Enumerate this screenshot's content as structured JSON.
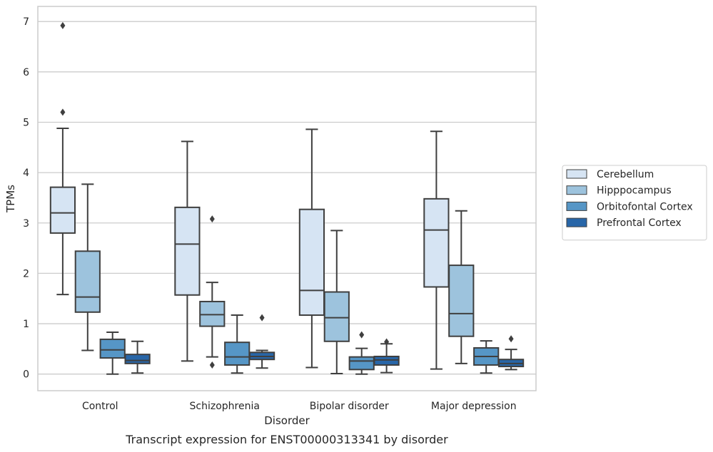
{
  "chart_data": {
    "type": "box",
    "xlabel": "Disorder",
    "ylabel": "TPMs",
    "caption": "Transcript expression for ENST00000313341 by disorder",
    "ylim": [
      -0.33,
      7.3
    ],
    "yticks": [
      "0",
      "1",
      "2",
      "3",
      "4",
      "5",
      "6",
      "7"
    ],
    "grid": "horizontal",
    "legend_position": "right",
    "categories": [
      "Control",
      "Schizophrenia",
      "Bipolar disorder",
      "Major depression"
    ],
    "series": [
      {
        "name": "Cerebellum",
        "color": "#d6e4f3",
        "boxes": [
          {
            "whisker_low": 1.58,
            "q1": 2.8,
            "median": 3.2,
            "q3": 3.71,
            "whisker_high": 4.88,
            "outliers": [
              5.2,
              6.92
            ]
          },
          {
            "whisker_low": 0.26,
            "q1": 1.57,
            "median": 2.58,
            "q3": 3.31,
            "whisker_high": 4.62,
            "outliers": []
          },
          {
            "whisker_low": 0.13,
            "q1": 1.17,
            "median": 1.66,
            "q3": 3.27,
            "whisker_high": 4.86,
            "outliers": []
          },
          {
            "whisker_low": 0.1,
            "q1": 1.73,
            "median": 2.86,
            "q3": 3.48,
            "whisker_high": 4.82,
            "outliers": []
          }
        ]
      },
      {
        "name": "Hipppocampus",
        "color": "#9dc3dd",
        "boxes": [
          {
            "whisker_low": 0.47,
            "q1": 1.23,
            "median": 1.53,
            "q3": 2.44,
            "whisker_high": 3.77,
            "outliers": []
          },
          {
            "whisker_low": 0.34,
            "q1": 0.95,
            "median": 1.18,
            "q3": 1.44,
            "whisker_high": 1.82,
            "outliers": [
              0.18,
              3.08
            ]
          },
          {
            "whisker_low": 0.01,
            "q1": 0.65,
            "median": 1.12,
            "q3": 1.63,
            "whisker_high": 2.85,
            "outliers": []
          },
          {
            "whisker_low": 0.21,
            "q1": 0.75,
            "median": 1.2,
            "q3": 2.16,
            "whisker_high": 3.24,
            "outliers": []
          }
        ]
      },
      {
        "name": "Orbitofontal Cortex",
        "color": "#5696c6",
        "boxes": [
          {
            "whisker_low": 0.0,
            "q1": 0.32,
            "median": 0.48,
            "q3": 0.69,
            "whisker_high": 0.83,
            "outliers": []
          },
          {
            "whisker_low": 0.02,
            "q1": 0.18,
            "median": 0.34,
            "q3": 0.63,
            "whisker_high": 1.17,
            "outliers": []
          },
          {
            "whisker_low": 0.0,
            "q1": 0.09,
            "median": 0.26,
            "q3": 0.34,
            "whisker_high": 0.51,
            "outliers": [
              0.78
            ]
          },
          {
            "whisker_low": 0.02,
            "q1": 0.18,
            "median": 0.35,
            "q3": 0.52,
            "whisker_high": 0.66,
            "outliers": []
          }
        ]
      },
      {
        "name": "Prefrontal Cortex",
        "color": "#2866a8",
        "boxes": [
          {
            "whisker_low": 0.02,
            "q1": 0.21,
            "median": 0.27,
            "q3": 0.39,
            "whisker_high": 0.65,
            "outliers": []
          },
          {
            "whisker_low": 0.12,
            "q1": 0.29,
            "median": 0.35,
            "q3": 0.43,
            "whisker_high": 0.47,
            "outliers": [
              1.12
            ]
          },
          {
            "whisker_low": 0.03,
            "q1": 0.18,
            "median": 0.28,
            "q3": 0.35,
            "whisker_high": 0.6,
            "outliers": [
              0.64
            ]
          },
          {
            "whisker_low": 0.09,
            "q1": 0.15,
            "median": 0.21,
            "q3": 0.29,
            "whisker_high": 0.49,
            "outliers": [
              0.7
            ]
          }
        ]
      }
    ]
  }
}
